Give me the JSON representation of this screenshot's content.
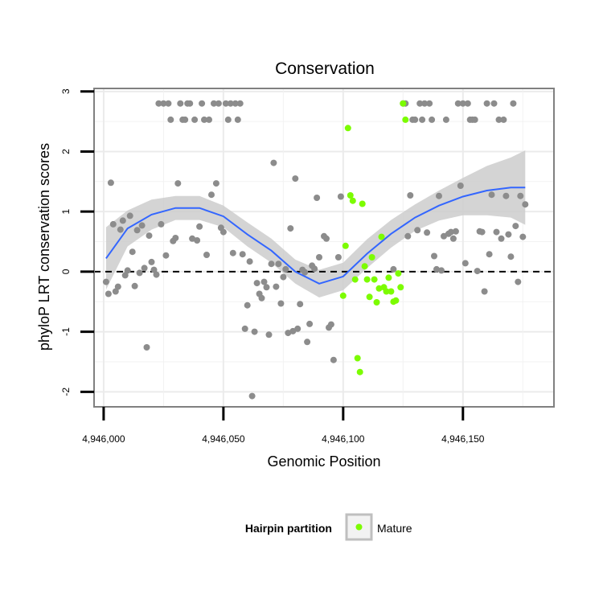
{
  "chart_data": {
    "type": "scatter",
    "title": "Conservation",
    "xlabel": "Genomic Position",
    "ylabel": "phyloP LRT conservation scores",
    "xlim": [
      4945996,
      4946188
    ],
    "ylim": [
      -2.25,
      3.05
    ],
    "x_ticks": [
      4946000,
      4946050,
      4946100,
      4946150
    ],
    "x_tick_labels": [
      "4,946,000",
      "4,946,050",
      "4,946,100",
      "4,946,150"
    ],
    "y_ticks": [
      -2,
      -1,
      0,
      1,
      2,
      3
    ],
    "y_tick_labels": [
      "-2",
      "-1",
      "0",
      "1",
      "2",
      "3"
    ],
    "grid": true,
    "reference_line": {
      "y": 0,
      "style": "dashed",
      "color": "#000000"
    },
    "legend": {
      "title": "Hairpin partition",
      "position": "bottom",
      "entries": [
        {
          "label": "Mature",
          "color": "#7cfc00"
        }
      ]
    },
    "colors": {
      "other": "#8c8c8c",
      "mature": "#7cfc00",
      "smooth": "#3366ff",
      "band": "#cccccc"
    },
    "series": [
      {
        "color": "#8c8c8c",
        "points": [
          [
            4946001,
            -0.17
          ],
          [
            4946002,
            -0.37
          ],
          [
            4946003,
            1.48
          ],
          [
            4946004,
            0.79
          ],
          [
            4946005,
            -0.33
          ],
          [
            4946006,
            -0.25
          ],
          [
            4946007,
            0.7
          ],
          [
            4946008,
            0.85
          ],
          [
            4946009,
            -0.06
          ],
          [
            4946010,
            0.02
          ],
          [
            4946011,
            0.93
          ],
          [
            4946012,
            0.33
          ],
          [
            4946013,
            -0.24
          ],
          [
            4946014,
            0.69
          ],
          [
            4946015,
            -0.02
          ],
          [
            4946016,
            0.77
          ],
          [
            4946017,
            0.06
          ],
          [
            4946018,
            -1.26
          ],
          [
            4946019,
            0.6
          ],
          [
            4946020,
            0.16
          ],
          [
            4946021,
            0.03
          ],
          [
            4946022,
            -0.05
          ],
          [
            4946023,
            2.8
          ],
          [
            4946024,
            0.79
          ],
          [
            4946025,
            2.8
          ],
          [
            4946026,
            0.27
          ],
          [
            4946027,
            2.8
          ],
          [
            4946028,
            2.53
          ],
          [
            4946029,
            0.51
          ],
          [
            4946030,
            0.56
          ],
          [
            4946031,
            1.47
          ],
          [
            4946032,
            2.8
          ],
          [
            4946033,
            2.53
          ],
          [
            4946034,
            2.53
          ],
          [
            4946035,
            2.8
          ],
          [
            4946036,
            2.8
          ],
          [
            4946037,
            0.55
          ],
          [
            4946038,
            2.53
          ],
          [
            4946039,
            0.52
          ],
          [
            4946040,
            0.75
          ],
          [
            4946041,
            2.8
          ],
          [
            4946042,
            2.53
          ],
          [
            4946043,
            0.28
          ],
          [
            4946044,
            2.53
          ],
          [
            4946045,
            1.28
          ],
          [
            4946046,
            2.8
          ],
          [
            4946047,
            1.47
          ],
          [
            4946048,
            2.8
          ],
          [
            4946049,
            0.73
          ],
          [
            4946050,
            0.66
          ],
          [
            4946051,
            2.8
          ],
          [
            4946052,
            2.53
          ],
          [
            4946053,
            2.8
          ],
          [
            4946054,
            0.31
          ],
          [
            4946055,
            2.8
          ],
          [
            4946056,
            2.53
          ],
          [
            4946057,
            2.8
          ],
          [
            4946058,
            0.29
          ],
          [
            4946059,
            -0.95
          ],
          [
            4946060,
            -0.56
          ],
          [
            4946061,
            0.17
          ],
          [
            4946062,
            -2.07
          ],
          [
            4946063,
            -1.0
          ],
          [
            4946064,
            -0.19
          ],
          [
            4946065,
            -0.37
          ],
          [
            4946066,
            -0.44
          ],
          [
            4946067,
            -0.17
          ],
          [
            4946068,
            -0.26
          ],
          [
            4946069,
            -1.05
          ],
          [
            4946070,
            0.13
          ],
          [
            4946071,
            1.81
          ],
          [
            4946072,
            -0.25
          ],
          [
            4946073,
            0.13
          ],
          [
            4946074,
            -0.53
          ],
          [
            4946075,
            -0.09
          ],
          [
            4946076,
            0.04
          ],
          [
            4946077,
            -1.02
          ],
          [
            4946078,
            0.72
          ],
          [
            4946079,
            -0.99
          ],
          [
            4946080,
            1.55
          ],
          [
            4946081,
            -0.95
          ],
          [
            4946082,
            -0.54
          ],
          [
            4946083,
            0.03
          ],
          [
            4946084,
            -0.01
          ],
          [
            4946085,
            -1.17
          ],
          [
            4946086,
            -0.87
          ],
          [
            4946087,
            0.1
          ],
          [
            4946088,
            0.05
          ],
          [
            4946089,
            1.23
          ],
          [
            4946090,
            0.24
          ],
          [
            4946092,
            0.59
          ],
          [
            4946093,
            0.55
          ],
          [
            4946094,
            -0.93
          ],
          [
            4946095,
            -0.88
          ],
          [
            4946096,
            -1.47
          ],
          [
            4946098,
            0.24
          ],
          [
            4946099,
            1.25
          ],
          [
            4946121,
            0.04
          ],
          [
            4946125,
            2.8
          ],
          [
            4946126,
            2.8
          ],
          [
            4946127,
            0.59
          ],
          [
            4946128,
            1.27
          ],
          [
            4946129,
            2.53
          ],
          [
            4946130,
            2.53
          ],
          [
            4946131,
            0.69
          ],
          [
            4946132,
            2.8
          ],
          [
            4946133,
            2.53
          ],
          [
            4946134,
            2.8
          ],
          [
            4946135,
            0.65
          ],
          [
            4946136,
            2.8
          ],
          [
            4946137,
            2.53
          ],
          [
            4946138,
            0.26
          ],
          [
            4946139,
            0.04
          ],
          [
            4946140,
            1.26
          ],
          [
            4946141,
            0.02
          ],
          [
            4946142,
            0.59
          ],
          [
            4946143,
            2.53
          ],
          [
            4946144,
            0.63
          ],
          [
            4946145,
            0.66
          ],
          [
            4946146,
            0.55
          ],
          [
            4946147,
            0.67
          ],
          [
            4946148,
            2.8
          ],
          [
            4946149,
            1.43
          ],
          [
            4946150,
            2.8
          ],
          [
            4946151,
            0.14
          ],
          [
            4946152,
            2.8
          ],
          [
            4946153,
            2.53
          ],
          [
            4946154,
            2.53
          ],
          [
            4946155,
            2.53
          ],
          [
            4946156,
            0.01
          ],
          [
            4946157,
            0.67
          ],
          [
            4946158,
            0.66
          ],
          [
            4946159,
            -0.33
          ],
          [
            4946160,
            2.8
          ],
          [
            4946161,
            0.29
          ],
          [
            4946162,
            1.28
          ],
          [
            4946163,
            2.8
          ],
          [
            4946164,
            0.66
          ],
          [
            4946165,
            2.53
          ],
          [
            4946166,
            0.55
          ],
          [
            4946167,
            2.53
          ],
          [
            4946168,
            1.26
          ],
          [
            4946169,
            0.62
          ],
          [
            4946170,
            0.25
          ],
          [
            4946171,
            2.8
          ],
          [
            4946172,
            0.76
          ],
          [
            4946173,
            -0.17
          ],
          [
            4946174,
            1.26
          ],
          [
            4946175,
            0.58
          ],
          [
            4946176,
            1.12
          ]
        ]
      },
      {
        "name": "Mature",
        "color": "#7cfc00",
        "points": [
          [
            4946100,
            -0.4
          ],
          [
            4946101,
            0.43
          ],
          [
            4946102,
            2.39
          ],
          [
            4946103,
            1.27
          ],
          [
            4946104,
            1.18
          ],
          [
            4946105,
            -0.13
          ],
          [
            4946106,
            -1.44
          ],
          [
            4946107,
            -1.67
          ],
          [
            4946108,
            1.13
          ],
          [
            4946109,
            0.09
          ],
          [
            4946110,
            -0.13
          ],
          [
            4946111,
            -0.42
          ],
          [
            4946112,
            0.24
          ],
          [
            4946113,
            -0.13
          ],
          [
            4946114,
            -0.51
          ],
          [
            4946115,
            -0.28
          ],
          [
            4946116,
            0.58
          ],
          [
            4946117,
            -0.26
          ],
          [
            4946118,
            -0.33
          ],
          [
            4946119,
            -0.1
          ],
          [
            4946120,
            -0.33
          ],
          [
            4946121,
            -0.5
          ],
          [
            4946122,
            -0.48
          ],
          [
            4946123,
            -0.03
          ],
          [
            4946124,
            -0.26
          ],
          [
            4946125,
            2.8
          ],
          [
            4946126,
            2.53
          ]
        ]
      }
    ],
    "smooth": {
      "x": [
        4946001,
        4946010,
        4946020,
        4946030,
        4946040,
        4946050,
        4946060,
        4946070,
        4946080,
        4946090,
        4946100,
        4946110,
        4946120,
        4946130,
        4946140,
        4946150,
        4946160,
        4946170,
        4946176
      ],
      "y": [
        0.22,
        0.72,
        0.95,
        1.06,
        1.06,
        0.92,
        0.62,
        0.35,
        0.0,
        -0.2,
        -0.08,
        0.3,
        0.63,
        0.9,
        1.1,
        1.25,
        1.35,
        1.4,
        1.4
      ],
      "lower": [
        -0.3,
        0.42,
        0.7,
        0.86,
        0.86,
        0.74,
        0.42,
        0.15,
        -0.2,
        -0.43,
        -0.31,
        0.06,
        0.4,
        0.68,
        0.85,
        0.94,
        0.94,
        0.9,
        0.78
      ],
      "upper": [
        0.74,
        1.02,
        1.2,
        1.26,
        1.26,
        1.1,
        0.82,
        0.55,
        0.2,
        0.03,
        0.15,
        0.54,
        0.86,
        1.12,
        1.35,
        1.56,
        1.76,
        1.9,
        2.02
      ]
    }
  }
}
